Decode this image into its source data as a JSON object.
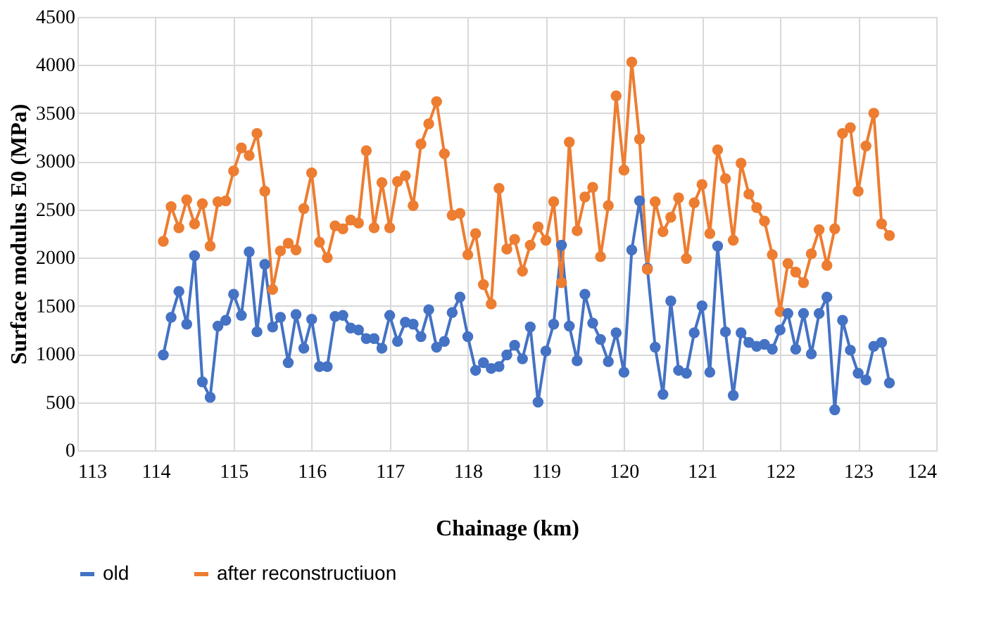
{
  "chart_data": {
    "type": "line",
    "xlabel": "Chainage (km)",
    "ylabel": "Surface modulus E0 (MPa)",
    "x": [
      114.1,
      114.2,
      114.3,
      114.4,
      114.5,
      114.6,
      114.7,
      114.8,
      114.9,
      115.0,
      115.1,
      115.2,
      115.3,
      115.4,
      115.5,
      115.6,
      115.7,
      115.8,
      115.9,
      116.0,
      116.1,
      116.2,
      116.3,
      116.4,
      116.5,
      116.6,
      116.7,
      116.8,
      116.9,
      117.0,
      117.1,
      117.2,
      117.3,
      117.4,
      117.5,
      117.6,
      117.7,
      117.8,
      117.9,
      118.0,
      118.1,
      118.2,
      118.3,
      118.4,
      118.5,
      118.6,
      118.7,
      118.8,
      118.9,
      119.0,
      119.1,
      119.2,
      119.3,
      119.4,
      119.5,
      119.6,
      119.7,
      119.8,
      119.9,
      120.0,
      120.1,
      120.2,
      120.3,
      120.4,
      120.5,
      120.6,
      120.7,
      120.8,
      120.9,
      121.0,
      121.1,
      121.2,
      121.3,
      121.4,
      121.5,
      121.6,
      121.7,
      121.8,
      121.9,
      122.0,
      122.1,
      122.2,
      122.3,
      122.4,
      122.5,
      122.6,
      122.7,
      122.8,
      122.9,
      123.0,
      123.1,
      123.2,
      123.3,
      123.4
    ],
    "series": [
      {
        "name": "old",
        "color": "#4472c4",
        "values": [
          990,
          1380,
          1650,
          1310,
          2020,
          710,
          550,
          1290,
          1350,
          1620,
          1400,
          2060,
          1230,
          1930,
          1280,
          1380,
          910,
          1410,
          1060,
          1360,
          870,
          870,
          1390,
          1400,
          1270,
          1250,
          1160,
          1160,
          1060,
          1400,
          1130,
          1330,
          1310,
          1180,
          1460,
          1070,
          1130,
          1430,
          1590,
          1180,
          830,
          910,
          850,
          870,
          990,
          1090,
          950,
          1280,
          500,
          1030,
          1310,
          2130,
          1290,
          930,
          1620,
          1320,
          1150,
          920,
          1220,
          810,
          2080,
          2590,
          1890,
          1070,
          580,
          1550,
          830,
          800,
          1220,
          1500,
          810,
          2120,
          1230,
          570,
          1220,
          1120,
          1080,
          1100,
          1050,
          1250,
          1420,
          1050,
          1420,
          1000,
          1420,
          1590,
          420,
          1350,
          1040,
          800,
          730,
          1080,
          1120,
          700
        ]
      },
      {
        "name": "after reconstructiuon",
        "color": "#ed7d31",
        "values": [
          2170,
          2530,
          2310,
          2600,
          2350,
          2560,
          2120,
          2580,
          2590,
          2900,
          3140,
          3060,
          3290,
          2690,
          1670,
          2070,
          2150,
          2080,
          2510,
          2880,
          2160,
          2000,
          2330,
          2300,
          2390,
          2360,
          3110,
          2310,
          2780,
          2310,
          2790,
          2850,
          2540,
          3180,
          3390,
          3620,
          3080,
          2440,
          2460,
          2030,
          2250,
          1720,
          1520,
          2720,
          2090,
          2190,
          1860,
          2130,
          2320,
          2180,
          2580,
          1740,
          3200,
          2280,
          2630,
          2730,
          2010,
          2540,
          3680,
          2910,
          4030,
          3230,
          1880,
          2580,
          2270,
          2420,
          2620,
          1990,
          2570,
          2760,
          2250,
          3120,
          2820,
          2180,
          2980,
          2660,
          2520,
          2380,
          2030,
          1440,
          1940,
          1850,
          1740,
          2040,
          2290,
          1920,
          2300,
          3290,
          3350,
          2690,
          3160,
          3500,
          2350,
          2230
        ]
      }
    ],
    "xlim": [
      113,
      124
    ],
    "xticks": [
      113,
      114,
      115,
      116,
      117,
      118,
      119,
      120,
      121,
      122,
      123,
      124
    ],
    "ylim": [
      0,
      4500
    ],
    "yticks": [
      0,
      500,
      1000,
      1500,
      2000,
      2500,
      3000,
      3500,
      4000,
      4500
    ],
    "grid": true,
    "legend": "bottom",
    "marker": "circle",
    "line_style": "solid"
  }
}
